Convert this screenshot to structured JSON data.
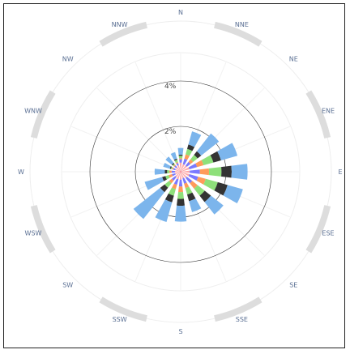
{
  "chart_data": {
    "type": "windrose",
    "directions": [
      "N",
      "NNE",
      "NE",
      "ENE",
      "E",
      "ESE",
      "SE",
      "SSE",
      "S",
      "SSW",
      "SW",
      "WSW",
      "W",
      "WNW",
      "NW",
      "NNW"
    ],
    "radial_ticks": [
      {
        "value": 2,
        "label": "2%"
      },
      {
        "value": 4,
        "label": "4%"
      }
    ],
    "r_max_percent": 6.0,
    "series": [
      {
        "color": "#ff4b5c",
        "values": [
          0.05,
          0.05,
          0.05,
          0.05,
          0.05,
          0.05,
          0.05,
          0.05,
          0.05,
          0.05,
          0.05,
          0.05,
          0.05,
          0.05,
          0.05,
          0.05
        ]
      },
      {
        "color": "#ffa9a9",
        "values": [
          0.35,
          0.3,
          0.3,
          0.35,
          0.35,
          0.35,
          0.3,
          0.25,
          0.3,
          0.3,
          0.25,
          0.2,
          0.2,
          0.2,
          0.2,
          0.25
        ]
      },
      {
        "color": "#7a7aff",
        "values": [
          0.15,
          0.25,
          0.2,
          0.35,
          0.45,
          0.4,
          0.3,
          0.25,
          0.3,
          0.25,
          0.2,
          0.15,
          0.15,
          0.1,
          0.1,
          0.1
        ]
      },
      {
        "color": "#ff9b5a",
        "values": [
          0.05,
          0.2,
          0.15,
          0.3,
          0.4,
          0.35,
          0.3,
          0.2,
          0.25,
          0.2,
          0.15,
          0.15,
          0.1,
          0.05,
          0.05,
          0.05
        ]
      },
      {
        "color": "#8ee07a",
        "values": [
          0.1,
          0.25,
          0.25,
          0.45,
          0.55,
          0.55,
          0.4,
          0.3,
          0.3,
          0.3,
          0.25,
          0.15,
          0.1,
          0.05,
          0.05,
          0.1
        ]
      },
      {
        "color": "#333333",
        "values": [
          0.05,
          0.2,
          0.2,
          0.35,
          0.45,
          0.45,
          0.35,
          0.3,
          0.3,
          0.3,
          0.25,
          0.15,
          0.1,
          0.05,
          0.05,
          0.05
        ]
      },
      {
        "color": "#7cb5ec",
        "values": [
          0.3,
          0.6,
          1.0,
          0.75,
          0.7,
          0.7,
          0.7,
          0.5,
          0.7,
          0.9,
          1.5,
          0.8,
          0.45,
          0.3,
          0.35,
          0.3
        ]
      }
    ],
    "grid": true,
    "legend": "none"
  }
}
